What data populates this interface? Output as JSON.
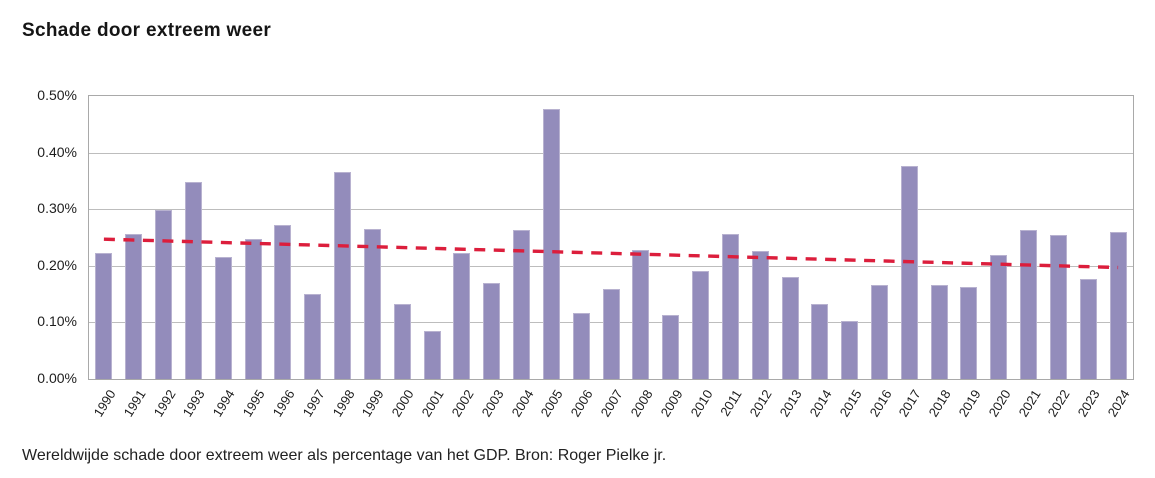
{
  "header": {
    "title": "Schade door extreem weer"
  },
  "caption": "Wereldwijde schade door extreem weer als percentage van het GDP. Bron: Roger Pielke jr.",
  "chart_data": {
    "type": "bar",
    "title": "Schade door extreem weer",
    "xlabel": "",
    "ylabel": "",
    "categories": [
      "1990",
      "1991",
      "1992",
      "1993",
      "1994",
      "1995",
      "1996",
      "1997",
      "1998",
      "1999",
      "2000",
      "2001",
      "2002",
      "2003",
      "2004",
      "2005",
      "2006",
      "2007",
      "2008",
      "2009",
      "2010",
      "2011",
      "2012",
      "2013",
      "2014",
      "2015",
      "2016",
      "2017",
      "2018",
      "2019",
      "2020",
      "2021",
      "2022",
      "2023",
      "2024"
    ],
    "values": [
      0.222,
      0.256,
      0.298,
      0.348,
      0.215,
      0.247,
      0.272,
      0.151,
      0.365,
      0.265,
      0.133,
      0.085,
      0.222,
      0.169,
      0.264,
      0.478,
      0.117,
      0.159,
      0.228,
      0.113,
      0.191,
      0.256,
      0.227,
      0.181,
      0.133,
      0.103,
      0.166,
      0.377,
      0.166,
      0.163,
      0.219,
      0.264,
      0.255,
      0.176,
      0.26
    ],
    "value_unit": "% of GDP",
    "ylim": [
      0,
      0.5
    ],
    "yticks": [
      {
        "value": 0.0,
        "label": "0.00%"
      },
      {
        "value": 0.1,
        "label": "0.10%"
      },
      {
        "value": 0.2,
        "label": "0.20%"
      },
      {
        "value": 0.3,
        "label": "0.30%"
      },
      {
        "value": 0.4,
        "label": "0.40%"
      },
      {
        "value": 0.5,
        "label": "0.50%"
      }
    ],
    "grid": true,
    "legend": null,
    "trend_line": {
      "style": "dashed",
      "start_value": 0.247,
      "end_value": 0.197,
      "color": "#dc1e3c"
    },
    "colors": {
      "bar_fill": "#938cbb",
      "bar_border": "#b8b2d0",
      "grid": "#bdbdbd",
      "plot_border": "#a9a9a9",
      "trend": "#dc1e3c",
      "title_text": "#151515",
      "tick_text": "#1d1d1d",
      "caption_text": "#222222"
    }
  }
}
